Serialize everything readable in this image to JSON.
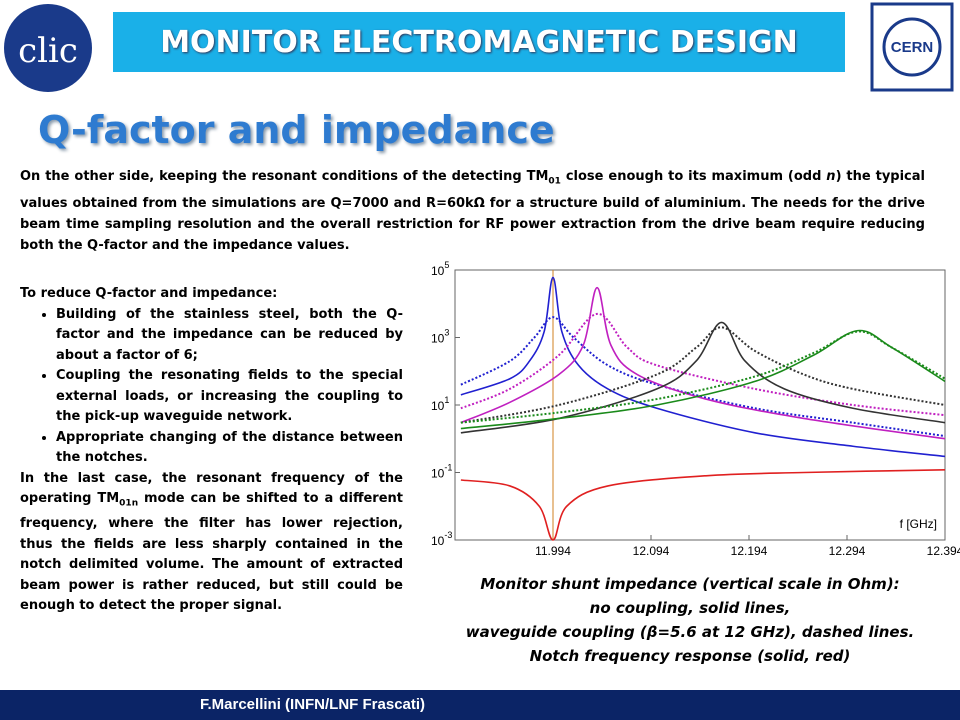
{
  "header": {
    "logo_left": "clic",
    "title": "MONITOR ELECTROMAGNETIC DESIGN",
    "logo_right": "CERN"
  },
  "heading": "Q-factor and impedance",
  "intro": [
    "On the other side, keeping the resonant conditions of the detecting TM",
    "01",
    " close enough to its maximum (odd ",
    "n",
    ") the typical values obtained from the simulations are Q=7000 and R=60kΩ for a structure build of aluminium. The needs for the drive beam time sampling resolution and the overall restriction for RF power extraction from the drive beam require reducing both the Q-factor and the impedance values."
  ],
  "left": {
    "lead": "To reduce Q-factor and impedance:",
    "bullets": [
      "Building of the stainless steel, both the Q-factor and the impedance can be reduced by about a factor of 6;",
      "Coupling the resonating fields to the special external loads, or increasing the coupling to the pick-up waveguide network.",
      "Appropriate changing of the distance between the notches."
    ],
    "closing": [
      "In the last case, the resonant frequency of the operating TM",
      "01n",
      " mode can be shifted to a different frequency, where the filter has lower rejection, thus the fields are less sharply contained in the notch delimited volume. The amount of extracted beam power is rather reduced, but still could be enough to detect the proper signal."
    ]
  },
  "chart_data": {
    "type": "line",
    "log": true,
    "xlabel": "f [GHz]",
    "xlim": [
      11.894,
      12.394
    ],
    "ylim": [
      0.001,
      100000
    ],
    "xticks": [
      11.994,
      12.094,
      12.194,
      12.294,
      12.394
    ],
    "yticks": [
      {
        "value": 0.001,
        "label": "10",
        "exponent": "-3"
      },
      {
        "value": 0.1,
        "label": "10",
        "exponent": "-1"
      },
      {
        "value": 10,
        "label": "10",
        "exponent": "1"
      },
      {
        "value": 1000,
        "label": "10",
        "exponent": "3"
      },
      {
        "value": 100000,
        "label": "10",
        "exponent": "5"
      }
    ],
    "series": [
      {
        "color": "#2020d0",
        "dash": "none",
        "x": [
          11.9,
          11.95,
          11.97,
          11.985,
          11.994,
          12.003,
          12.02,
          12.05,
          12.1,
          12.2,
          12.3,
          12.394
        ],
        "values": [
          20,
          60,
          200,
          1500,
          60000,
          1500,
          150,
          30,
          8,
          1.5,
          0.6,
          0.3
        ]
      },
      {
        "color": "#2020d0",
        "dash": "2,2",
        "x": [
          11.9,
          11.95,
          11.975,
          11.994,
          12.015,
          12.05,
          12.1,
          12.2,
          12.3,
          12.394
        ],
        "values": [
          40,
          200,
          1000,
          4000,
          1000,
          150,
          40,
          8,
          3,
          1.2
        ]
      },
      {
        "color": "#c020c0",
        "dash": "none",
        "x": [
          11.9,
          11.95,
          12.0,
          12.025,
          12.039,
          12.053,
          12.08,
          12.15,
          12.25,
          12.394
        ],
        "values": [
          3,
          12,
          80,
          600,
          30000,
          600,
          80,
          15,
          4,
          1
        ]
      },
      {
        "color": "#c020c0",
        "dash": "2,2",
        "x": [
          11.9,
          11.95,
          12.0,
          12.039,
          12.07,
          12.1,
          12.2,
          12.3,
          12.394
        ],
        "values": [
          8,
          30,
          300,
          5000,
          500,
          150,
          30,
          10,
          5
        ]
      },
      {
        "color": "#333333",
        "dash": "none",
        "x": [
          11.9,
          12.0,
          12.1,
          12.14,
          12.166,
          12.19,
          12.23,
          12.3,
          12.394
        ],
        "values": [
          1.5,
          4,
          30,
          200,
          2800,
          200,
          30,
          8,
          3
        ]
      },
      {
        "color": "#333333",
        "dash": "2,2",
        "x": [
          11.9,
          12.0,
          12.1,
          12.14,
          12.166,
          12.2,
          12.25,
          12.3,
          12.394
        ],
        "values": [
          3,
          10,
          80,
          500,
          2000,
          400,
          80,
          30,
          10
        ]
      },
      {
        "color": "#1a8a1a",
        "dash": "none",
        "x": [
          11.9,
          12.0,
          12.1,
          12.2,
          12.26,
          12.305,
          12.34,
          12.394
        ],
        "values": [
          2,
          4,
          10,
          50,
          300,
          1600,
          500,
          50
        ]
      },
      {
        "color": "#1a8a1a",
        "dash": "2,2",
        "x": [
          11.9,
          12.0,
          12.1,
          12.2,
          12.26,
          12.305,
          12.34,
          12.394
        ],
        "values": [
          3,
          6,
          15,
          70,
          350,
          1500,
          500,
          60
        ]
      },
      {
        "color": "#e02020",
        "dash": "none",
        "x": [
          11.9,
          11.95,
          11.98,
          11.994,
          12.008,
          12.05,
          12.15,
          12.25,
          12.394
        ],
        "values": [
          0.06,
          0.04,
          0.01,
          0.001,
          0.01,
          0.04,
          0.08,
          0.1,
          0.12
        ]
      }
    ]
  },
  "caption": [
    "Monitor shunt impedance (vertical scale in Ohm):",
    "no coupling, solid lines,",
    "waveguide coupling (β=5.6 at 12 GHz), dashed lines.",
    "Notch frequency response (solid, red)"
  ],
  "footer": "F.Marcellini (INFN/LNF Frascati)"
}
